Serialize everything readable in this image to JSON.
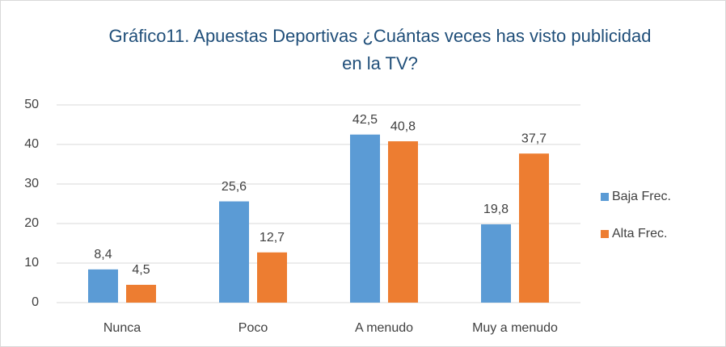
{
  "chart_data": {
    "type": "bar",
    "title": "Gráfico11. Apuestas Deportivas ¿Cuántas veces has visto publicidad en la TV?",
    "categories": [
      "Nunca",
      "Poco",
      "A menudo",
      "Muy a menudo"
    ],
    "series": [
      {
        "name": "Baja Frec.",
        "color": "#5b9bd5",
        "values": [
          8.4,
          25.6,
          42.5,
          19.8
        ],
        "value_labels": [
          "8,4",
          "25,6",
          "42,5",
          "19,8"
        ]
      },
      {
        "name": "Alta Frec.",
        "color": "#ed7d31",
        "values": [
          4.5,
          12.7,
          40.8,
          37.7
        ],
        "value_labels": [
          "4,5",
          "12,7",
          "40,8",
          "37,7"
        ]
      }
    ],
    "ylim": [
      0,
      50
    ],
    "yticks": [
      0,
      10,
      20,
      30,
      40,
      50
    ],
    "grid": true,
    "legend": "right"
  }
}
